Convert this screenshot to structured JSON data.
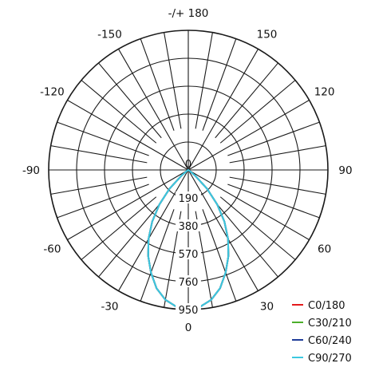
{
  "chart_data": {
    "type": "polar-line",
    "radial_ticks": [
      "0",
      "190",
      "380",
      "570",
      "760",
      "950"
    ],
    "radial_max": 950,
    "angle_labels": [
      {
        "deg": 180,
        "text": "-/+ 180"
      },
      {
        "deg": -150,
        "text": "-150"
      },
      {
        "deg": 150,
        "text": "150"
      },
      {
        "deg": -120,
        "text": "-120"
      },
      {
        "deg": 120,
        "text": "120"
      },
      {
        "deg": -90,
        "text": "-90"
      },
      {
        "deg": 90,
        "text": "90"
      },
      {
        "deg": -60,
        "text": "-60"
      },
      {
        "deg": 60,
        "text": "60"
      },
      {
        "deg": -30,
        "text": "-30"
      },
      {
        "deg": 30,
        "text": "30"
      },
      {
        "deg": 0,
        "text": "0"
      }
    ],
    "angle_gridline_step_deg": 10,
    "series": [
      {
        "name": "C0/180",
        "color": "#e41a1c",
        "angles": [
          -90,
          -85,
          -80,
          -75,
          -70,
          -65,
          -60,
          -55,
          -50,
          -45,
          -40,
          -35,
          -30,
          -25,
          -20,
          -15,
          -10,
          -5,
          0,
          5,
          10,
          15,
          20,
          25,
          30,
          35,
          40,
          45,
          50,
          55,
          60,
          65,
          70,
          75,
          80,
          85,
          90
        ],
        "values": [
          0,
          0,
          0,
          0,
          0,
          0,
          0,
          15,
          60,
          180,
          305,
          428,
          541,
          646,
          743,
          834,
          897,
          934,
          950,
          934,
          897,
          834,
          743,
          646,
          541,
          428,
          305,
          180,
          60,
          15,
          0,
          0,
          0,
          0,
          0,
          0,
          0
        ]
      },
      {
        "name": "C30/210",
        "color": "#4caf2a",
        "angles": [
          -90,
          -85,
          -80,
          -75,
          -70,
          -65,
          -60,
          -55,
          -50,
          -45,
          -40,
          -35,
          -30,
          -25,
          -20,
          -15,
          -10,
          -5,
          0,
          5,
          10,
          15,
          20,
          25,
          30,
          35,
          40,
          45,
          50,
          55,
          60,
          65,
          70,
          75,
          80,
          85,
          90
        ],
        "values": [
          0,
          0,
          0,
          0,
          0,
          0,
          0,
          15,
          60,
          180,
          305,
          428,
          541,
          646,
          743,
          834,
          897,
          934,
          950,
          934,
          897,
          834,
          743,
          646,
          541,
          428,
          305,
          180,
          60,
          15,
          0,
          0,
          0,
          0,
          0,
          0,
          0
        ]
      },
      {
        "name": "C60/240",
        "color": "#1f3d99",
        "angles": [
          -90,
          -85,
          -80,
          -75,
          -70,
          -65,
          -60,
          -55,
          -50,
          -45,
          -40,
          -35,
          -30,
          -25,
          -20,
          -15,
          -10,
          -5,
          0,
          5,
          10,
          15,
          20,
          25,
          30,
          35,
          40,
          45,
          50,
          55,
          60,
          65,
          70,
          75,
          80,
          85,
          90
        ],
        "values": [
          0,
          0,
          0,
          0,
          0,
          0,
          0,
          15,
          60,
          180,
          305,
          428,
          541,
          646,
          743,
          834,
          897,
          934,
          950,
          934,
          897,
          834,
          743,
          646,
          541,
          428,
          305,
          180,
          60,
          15,
          0,
          0,
          0,
          0,
          0,
          0,
          0
        ]
      },
      {
        "name": "C90/270",
        "color": "#3cc8e0",
        "angles": [
          -90,
          -85,
          -80,
          -75,
          -70,
          -65,
          -60,
          -55,
          -50,
          -45,
          -40,
          -35,
          -30,
          -25,
          -20,
          -15,
          -10,
          -5,
          0,
          5,
          10,
          15,
          20,
          25,
          30,
          35,
          40,
          45,
          50,
          55,
          60,
          65,
          70,
          75,
          80,
          85,
          90
        ],
        "values": [
          0,
          0,
          0,
          0,
          0,
          0,
          0,
          15,
          60,
          180,
          305,
          428,
          541,
          646,
          743,
          834,
          897,
          934,
          950,
          934,
          897,
          834,
          743,
          646,
          541,
          428,
          305,
          180,
          60,
          15,
          0,
          0,
          0,
          0,
          0,
          0,
          0
        ]
      }
    ],
    "legend_position": "bottom-right",
    "grid": true
  }
}
